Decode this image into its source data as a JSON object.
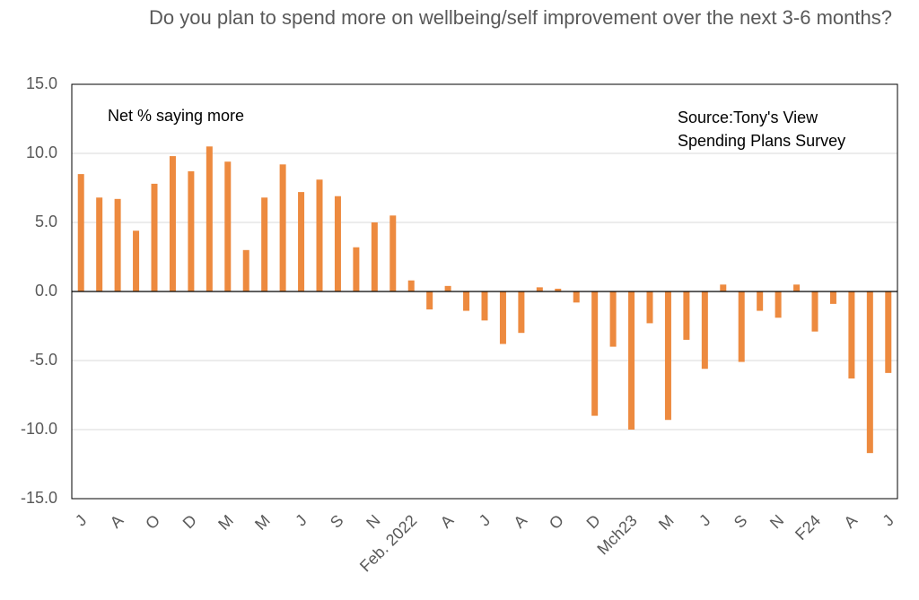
{
  "chart_data": {
    "type": "bar",
    "title": "Do you plan to spend more on wellbeing/self improvement over the next 3-6 months?",
    "annotations": [
      "Net % saying more",
      "Source:Tony's View Spending Plans Survey"
    ],
    "categories": [
      "J",
      null,
      "A",
      null,
      "O",
      null,
      "D",
      null,
      "M",
      null,
      "M",
      null,
      "J",
      null,
      "S",
      null,
      "N",
      null,
      "Feb. 2022",
      null,
      "A",
      null,
      "J",
      null,
      "A",
      null,
      "O",
      null,
      "D",
      null,
      "Mch23",
      null,
      "M",
      null,
      "J",
      null,
      "S",
      null,
      "N",
      null,
      "F24",
      null,
      "A",
      null,
      "J"
    ],
    "values": [
      8.5,
      6.8,
      6.7,
      4.4,
      7.8,
      9.8,
      8.7,
      10.5,
      9.4,
      3.0,
      6.8,
      9.2,
      7.2,
      8.1,
      6.9,
      3.2,
      5.0,
      5.5,
      0.8,
      -1.3,
      0.4,
      -1.4,
      -2.1,
      -3.8,
      -3.0,
      0.3,
      0.2,
      -0.8,
      -9.0,
      -4.0,
      -10.0,
      -2.3,
      -9.3,
      -3.5,
      -5.6,
      0.5,
      -5.1,
      -1.4,
      -1.9,
      0.5,
      -2.9,
      -0.9,
      -6.3,
      -11.7,
      -5.9
    ],
    "color": "#ed8a3f",
    "ylim": [
      -15,
      15
    ],
    "yticks": [
      {
        "value": -15,
        "label": "-15.0"
      },
      {
        "value": -10,
        "label": "-10.0"
      },
      {
        "value": -5,
        "label": "-5.0"
      },
      {
        "value": 0,
        "label": "0.0"
      },
      {
        "value": 5,
        "label": "5.0"
      },
      {
        "value": 10,
        "label": "10.0"
      },
      {
        "value": 15,
        "label": "15.0"
      }
    ],
    "grid": true
  }
}
